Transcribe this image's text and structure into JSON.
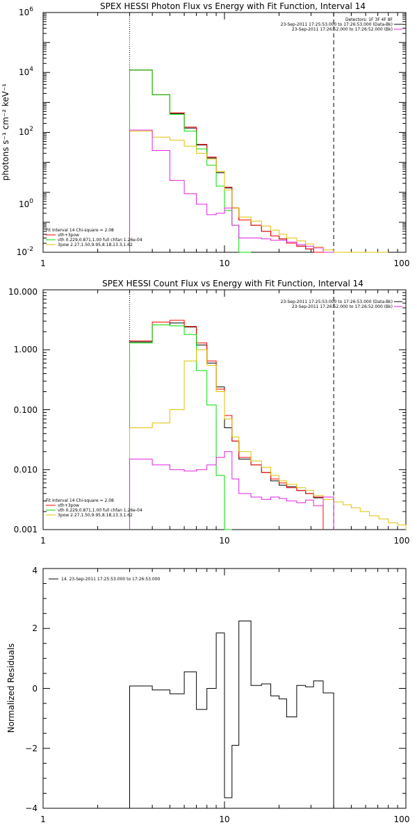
{
  "chart_data": [
    {
      "type": "line",
      "title": "SPEX HESSI Photon Flux vs Energy with Fit Function, Interval 14",
      "xlabel": "",
      "ylabel": "photons s⁻¹ cm⁻² keV⁻¹",
      "xscale": "log",
      "yscale": "log",
      "xlim": [
        1,
        100
      ],
      "ylim": [
        0.01,
        1000000
      ],
      "xticks": [
        "1",
        "10",
        "100"
      ],
      "yticks": [
        {
          "base": "10",
          "exp": "-2",
          "value": 0.01
        },
        {
          "base": "10",
          "exp": "0",
          "value": 1
        },
        {
          "base": "10",
          "exp": "2",
          "value": 100
        },
        {
          "base": "10",
          "exp": "4",
          "value": 10000
        },
        {
          "base": "10",
          "exp": "6",
          "value": 1000000
        }
      ],
      "vlines": [
        {
          "x": 3,
          "style": "dotted"
        },
        {
          "x": 40,
          "style": "dashed"
        }
      ],
      "legend_topright": [
        {
          "text": "Detectors: 1F 3F 4F 8F",
          "color": ""
        },
        {
          "text": "23-Sep-2011 17:25:53.000 to 17:26:53.000 (Data-Bk)",
          "color": "#000000"
        },
        {
          "text": "23-Sep-2011 17:26:52.000 to 17:26:52.000 (Bk)",
          "color": "#e020e0"
        }
      ],
      "legend_bottomleft": [
        {
          "text": "Fit Interval 14   Chi-square = 2.08",
          "color": ""
        },
        {
          "text": "vth+3pow",
          "color": "#ff0000"
        },
        {
          "text": "vth 0.229,0.871,1.00  full chfan 1.26e-04",
          "color": "#00dd00"
        },
        {
          "text": "3pow 2.27,1.50,9.95,8.18,13.3,1.62",
          "color": "#e0c000"
        }
      ],
      "edges": [
        3,
        4,
        5,
        6,
        7,
        8,
        9,
        10,
        11,
        12,
        14,
        16,
        18,
        20,
        22,
        25,
        28,
        31,
        35,
        40,
        45,
        50,
        56,
        63,
        71,
        80
      ],
      "series": [
        {
          "name": "",
          "color": "#000000",
          "values": [
            12000,
            1800,
            420,
            140,
            38,
            14,
            4.5,
            1.4,
            0.3,
            0.12,
            0.08,
            0.05,
            0.035,
            0.028,
            0.02,
            0.016,
            0.013,
            0.01
          ]
        },
        {
          "name": "",
          "color": "#ff0000",
          "values": [
            12000,
            1800,
            450,
            150,
            40,
            15,
            5,
            1.5,
            0.3,
            0.12,
            0.08,
            0.05,
            0.035,
            0.028,
            0.02,
            0.016,
            0.013,
            0.01
          ]
        },
        {
          "name": "",
          "color": "#00dd00",
          "values": [
            12000,
            1800,
            400,
            110,
            28,
            8,
            1.6,
            0.25,
            0.08,
            0.01
          ]
        },
        {
          "name": "",
          "color": "#e0c000",
          "values": [
            110,
            70,
            55,
            35,
            20,
            13,
            5,
            1.2,
            0.3,
            0.15,
            0.11,
            0.075,
            0.055,
            0.04,
            0.03,
            0.024,
            0.019,
            0.015,
            0.012,
            0.0095,
            0.008,
            0.0065,
            0.0055,
            0.0048,
            0.004
          ]
        },
        {
          "name": "",
          "color": "#e020e0",
          "values": [
            120,
            25,
            2.5,
            0.9,
            0.4,
            0.18,
            0.2,
            0.3,
            0.08,
            0.03,
            0.03,
            0.028,
            0.025,
            0.025,
            0.022,
            0.018,
            0.016,
            0.014,
            0.01
          ]
        }
      ]
    },
    {
      "type": "line",
      "title": "SPEX HESSI Count Flux vs Energy with Fit Function, Interval 14",
      "xlabel": "",
      "ylabel": "",
      "xscale": "log",
      "yscale": "log",
      "xlim": [
        1,
        100
      ],
      "ylim": [
        0.001,
        10
      ],
      "xticks": [
        "1",
        "10",
        "100"
      ],
      "yticks": [
        {
          "label": "0.001",
          "value": 0.001
        },
        {
          "label": "0.010",
          "value": 0.01
        },
        {
          "label": "0.100",
          "value": 0.1
        },
        {
          "label": "1.000",
          "value": 1
        },
        {
          "label": "10.000",
          "value": 10
        }
      ],
      "vlines": [
        {
          "x": 3,
          "style": "dotted"
        },
        {
          "x": 40,
          "style": "dashed"
        }
      ],
      "legend_topright": [
        {
          "text": "23-Sep-2011 17:25:53.000 to 17:26:53.000 (Data-Bk)",
          "color": "#000000"
        },
        {
          "text": "23-Sep-2011 17:26:52.000 to 17:26:52.000 (Bk)",
          "color": "#e020e0"
        }
      ],
      "legend_bottomleft": [
        {
          "text": "Fit Interval 14   Chi-square = 2.08",
          "color": ""
        },
        {
          "text": "vth+3pow",
          "color": "#ff0000"
        },
        {
          "text": "vth 0.229,0.871,1.00  full chfan 1.26e-04",
          "color": "#00dd00"
        },
        {
          "text": "3pow 2.27,1.50,9.95,8.18,13.3,1.62",
          "color": "#e0c000"
        }
      ],
      "edges": [
        3,
        4,
        5,
        6,
        7,
        8,
        9,
        10,
        11,
        12,
        14,
        16,
        18,
        20,
        22,
        25,
        28,
        31,
        35,
        40,
        45,
        50,
        56,
        63,
        71,
        80,
        90,
        100
      ],
      "series": [
        {
          "name": "",
          "color": "#000000",
          "values": [
            1.35,
            2.6,
            2.8,
            2.4,
            1.2,
            0.6,
            0.24,
            0.05,
            0.03,
            0.015,
            0.012,
            0.009,
            0.0065,
            0.0055,
            0.0052,
            0.0045,
            0.004,
            0.0034
          ]
        },
        {
          "name": "",
          "color": "#ff0000",
          "values": [
            1.4,
            2.9,
            3.1,
            2.45,
            1.3,
            0.65,
            0.22,
            0.08,
            0.03,
            0.016,
            0.012,
            0.009,
            0.007,
            0.006,
            0.005,
            0.0045,
            0.004,
            0.0035
          ]
        },
        {
          "name": "",
          "color": "#00dd00",
          "values": [
            1.3,
            2.6,
            2.5,
            1.8,
            0.45,
            0.12,
            0.008,
            0.001
          ]
        },
        {
          "name": "",
          "color": "#e0c000",
          "values": [
            0.05,
            0.06,
            0.1,
            0.65,
            1.0,
            0.55,
            0.2,
            0.07,
            0.035,
            0.02,
            0.014,
            0.011,
            0.008,
            0.0065,
            0.0057,
            0.005,
            0.0045,
            0.0037,
            0.0032,
            0.0029,
            0.0026,
            0.0023,
            0.002,
            0.0017,
            0.0015,
            0.0013,
            0.0012
          ]
        },
        {
          "name": "",
          "color": "#e020e0",
          "values": [
            0.015,
            0.012,
            0.01,
            0.0095,
            0.01,
            0.012,
            0.016,
            0.02,
            0.007,
            0.004,
            0.0035,
            0.0032,
            0.0035,
            0.0033,
            0.003,
            0.0028,
            0.0031,
            0.0025,
            0.0035
          ]
        }
      ]
    },
    {
      "type": "line",
      "title": "",
      "xlabel": "",
      "ylabel": "Normalized Residuals",
      "xscale": "log",
      "yscale": "linear",
      "xlim": [
        1,
        100
      ],
      "ylim": [
        -4,
        4
      ],
      "xticks": [
        "1",
        "10",
        "100"
      ],
      "yticks": [
        {
          "label": "−4",
          "value": -4
        },
        {
          "label": "−2",
          "value": -2
        },
        {
          "label": "0",
          "value": 0
        },
        {
          "label": "2",
          "value": 2
        },
        {
          "label": "4",
          "value": 4
        }
      ],
      "legend_topleft": [
        {
          "text": "14. 23-Sep-2011 17:25:53.000 to 17:26:53.000",
          "color": "#000000"
        }
      ],
      "edges": [
        3,
        4,
        5,
        6,
        7,
        8,
        9,
        10,
        11,
        12,
        14,
        16,
        18,
        20,
        22,
        25,
        28,
        31,
        35,
        40
      ],
      "series": [
        {
          "name": "",
          "color": "#000000",
          "values": [
            0.08,
            -0.05,
            -0.18,
            0.55,
            -0.7,
            0.0,
            1.85,
            -3.65,
            -1.9,
            2.25,
            0.1,
            0.15,
            -0.25,
            -0.35,
            -0.95,
            0.1,
            0.05,
            0.25,
            -0.15
          ]
        }
      ]
    }
  ]
}
